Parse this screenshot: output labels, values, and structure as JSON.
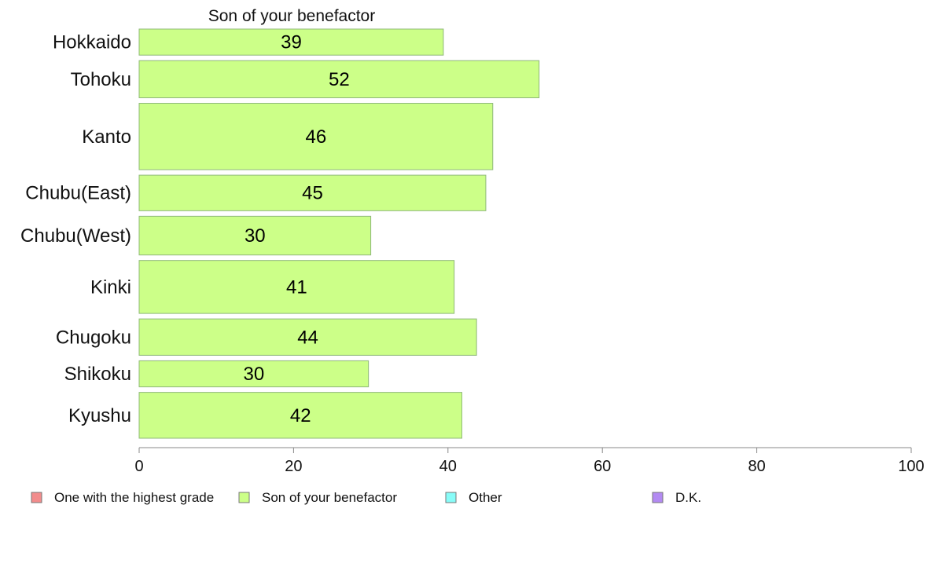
{
  "chart_data": {
    "type": "bar",
    "orientation": "horizontal",
    "title": "Son of your benefactor",
    "categories": [
      "Hokkaido",
      "Tohoku",
      "Kanto",
      "Chubu(East)",
      "Chubu(West)",
      "Kinki",
      "Chugoku",
      "Shikoku",
      "Kyushu"
    ],
    "category_weights": [
      33,
      47,
      84,
      45,
      49,
      67,
      46,
      33,
      58
    ],
    "series": [
      {
        "name": "Son of your benefactor",
        "values": [
          39.4,
          51.8,
          45.8,
          44.9,
          30.0,
          40.8,
          43.7,
          29.7,
          41.8
        ],
        "labels": [
          "39",
          "52",
          "46",
          "45",
          "30",
          "41",
          "44",
          "30",
          "42"
        ]
      }
    ],
    "xlim": [
      0,
      100
    ],
    "xticks": [
      "0",
      "20",
      "40",
      "60",
      "80",
      "100"
    ],
    "grid": false,
    "legend": {
      "position": "bottom",
      "entries": [
        {
          "label": "One with the highest grade",
          "color": "#f28c8c"
        },
        {
          "label": "Son of your benefactor",
          "color": "#ccff88"
        },
        {
          "label": "Other",
          "color": "#88fcf8"
        },
        {
          "label": "D.K.",
          "color": "#b38af2"
        }
      ]
    },
    "colors": {
      "bar_fill": "#ccff88",
      "bar_stroke": "#8fb87a",
      "axis": "#888888"
    }
  }
}
